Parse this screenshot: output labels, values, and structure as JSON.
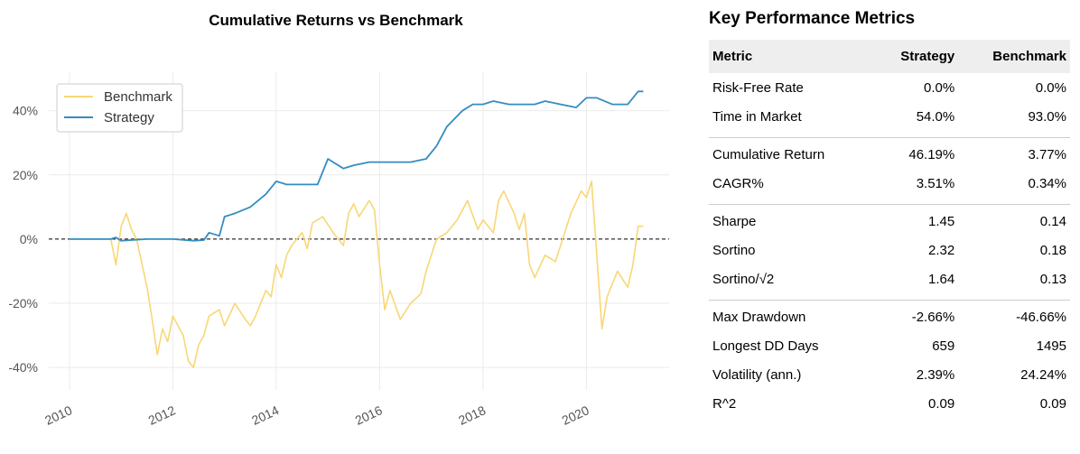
{
  "chart_data": {
    "type": "line",
    "title": "Cumulative Returns vs Benchmark",
    "xlabel": "",
    "ylabel": "",
    "x_ticks": [
      "2010",
      "2012",
      "2014",
      "2016",
      "2018",
      "2020"
    ],
    "y_ticks": [
      "-40%",
      "-20%",
      "0%",
      "20%",
      "40%"
    ],
    "xlim": [
      2009.6,
      2021.6
    ],
    "ylim": [
      -47,
      52
    ],
    "grid": true,
    "legend_position": "top-left",
    "reference_line": 0,
    "series": [
      {
        "name": "Benchmark",
        "color": "#f8d775",
        "x": [
          2010.0,
          2010.5,
          2010.8,
          2010.9,
          2011.0,
          2011.1,
          2011.2,
          2011.3,
          2011.5,
          2011.6,
          2011.7,
          2011.8,
          2011.9,
          2012.0,
          2012.2,
          2012.3,
          2012.4,
          2012.5,
          2012.6,
          2012.7,
          2012.9,
          2013.0,
          2013.2,
          2013.4,
          2013.5,
          2013.6,
          2013.8,
          2013.9,
          2014.0,
          2014.1,
          2014.2,
          2014.3,
          2014.5,
          2014.6,
          2014.7,
          2014.9,
          2015.1,
          2015.3,
          2015.4,
          2015.5,
          2015.6,
          2015.8,
          2015.9,
          2016.0,
          2016.1,
          2016.2,
          2016.4,
          2016.6,
          2016.8,
          2016.9,
          2017.1,
          2017.3,
          2017.5,
          2017.7,
          2017.9,
          2018.0,
          2018.2,
          2018.3,
          2018.4,
          2018.6,
          2018.7,
          2018.8,
          2018.9,
          2019.0,
          2019.2,
          2019.4,
          2019.5,
          2019.7,
          2019.9,
          2020.0,
          2020.1,
          2020.2,
          2020.3,
          2020.4,
          2020.6,
          2020.8,
          2020.9,
          2021.0,
          2021.1
        ],
        "y": [
          0.0,
          0.0,
          0.0,
          -8,
          4,
          8,
          3,
          0,
          -15,
          -25,
          -36,
          -28,
          -32,
          -24,
          -30,
          -38,
          -40,
          -33,
          -30,
          -24,
          -22,
          -27,
          -20,
          -25,
          -27,
          -24,
          -16,
          -18,
          -8,
          -12,
          -5,
          -2,
          2,
          -3,
          5,
          7,
          2,
          -2,
          8,
          11,
          7,
          12,
          9,
          -8,
          -22,
          -16,
          -25,
          -20,
          -17,
          -10,
          0,
          2,
          6,
          12,
          3,
          6,
          2,
          12,
          15,
          8,
          3,
          8,
          -8,
          -12,
          -5,
          -7,
          -2,
          8,
          15,
          13,
          18,
          -5,
          -28,
          -18,
          -10,
          -15,
          -8,
          4,
          4
        ]
      },
      {
        "name": "Strategy",
        "color": "#348dc1",
        "x": [
          2010.0,
          2010.8,
          2010.9,
          2011.0,
          2011.5,
          2011.8,
          2012.0,
          2012.4,
          2012.6,
          2012.7,
          2012.9,
          2013.0,
          2013.2,
          2013.5,
          2013.8,
          2014.0,
          2014.2,
          2014.5,
          2014.8,
          2015.0,
          2015.1,
          2015.3,
          2015.5,
          2015.8,
          2016.0,
          2016.3,
          2016.6,
          2016.9,
          2017.1,
          2017.3,
          2017.6,
          2017.8,
          2018.0,
          2018.2,
          2018.5,
          2018.8,
          2019.0,
          2019.2,
          2019.5,
          2019.8,
          2020.0,
          2020.2,
          2020.5,
          2020.8,
          2021.0,
          2021.1
        ],
        "y": [
          0.0,
          0.0,
          0.5,
          -0.5,
          0.0,
          0.0,
          0.0,
          -0.5,
          -0.3,
          2,
          1,
          7,
          8,
          10,
          14,
          18,
          17,
          17,
          17,
          25,
          24,
          22,
          23,
          24,
          24,
          24,
          24,
          25,
          29,
          35,
          40,
          42,
          42,
          43,
          42,
          42,
          42,
          43,
          42,
          41,
          44,
          44,
          42,
          42,
          46,
          46
        ]
      }
    ]
  },
  "metrics": {
    "title": "Key Performance Metrics",
    "headers": [
      "Metric",
      "Strategy",
      "Benchmark"
    ],
    "groups": [
      [
        [
          "Risk-Free Rate",
          "0.0%",
          "0.0%"
        ],
        [
          "Time in Market",
          "54.0%",
          "93.0%"
        ]
      ],
      [
        [
          "Cumulative Return",
          "46.19%",
          "3.77%"
        ],
        [
          "CAGR%",
          "3.51%",
          "0.34%"
        ]
      ],
      [
        [
          "Sharpe",
          "1.45",
          "0.14"
        ],
        [
          "Sortino",
          "2.32",
          "0.18"
        ],
        [
          "Sortino/√2",
          "1.64",
          "0.13"
        ]
      ],
      [
        [
          "Max Drawdown",
          "-2.66%",
          "-46.66%"
        ],
        [
          "Longest DD Days",
          "659",
          "1495"
        ],
        [
          "Volatility (ann.)",
          "2.39%",
          "24.24%"
        ],
        [
          "R^2",
          "0.09",
          "0.09"
        ]
      ]
    ]
  },
  "colors": {
    "grid": "#ebebeb",
    "zero_line": "#000000",
    "header_bg": "#eeeeee"
  }
}
